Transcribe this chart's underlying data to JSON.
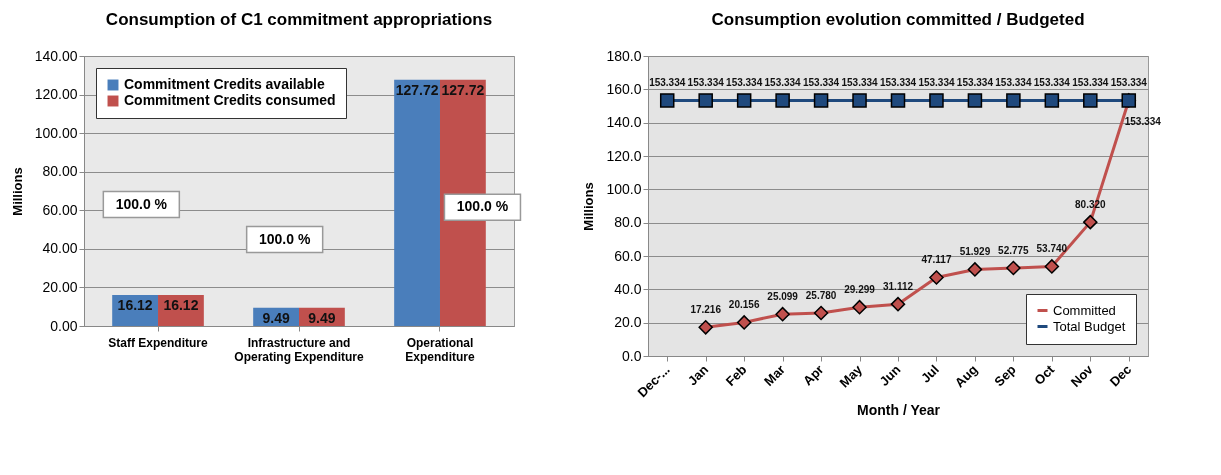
{
  "chart_data": [
    {
      "type": "bar",
      "title": "Consumption of C1 commitment appropriations",
      "ylabel": "Millions",
      "categories": [
        "Staff Expenditure",
        "Infrastructure and Operating Expenditure",
        "Operational Expenditure"
      ],
      "series": [
        {
          "name": "Commitment Credits available",
          "color": "#4a7ebb",
          "values": [
            16.12,
            9.49,
            127.72
          ]
        },
        {
          "name": "Commitment Credits consumed",
          "color": "#c0504d",
          "values": [
            16.12,
            9.49,
            127.72
          ]
        }
      ],
      "ylim": [
        0,
        140
      ],
      "yticks": [
        {
          "value": 0,
          "label": "0.00"
        },
        {
          "value": 20,
          "label": "20.00"
        },
        {
          "value": 40,
          "label": "40.00"
        },
        {
          "value": 60,
          "label": "60.00"
        },
        {
          "value": 80,
          "label": "80.00"
        },
        {
          "value": 100,
          "label": "100.00"
        },
        {
          "value": 120,
          "label": "120.00"
        },
        {
          "value": 140,
          "label": "140.00"
        }
      ],
      "grid": "y",
      "legend": "top left",
      "data_labels": true,
      "annotations": [
        "100.0 %",
        "100.0 %",
        "100.0 %"
      ]
    },
    {
      "type": "line",
      "title": "Consumption evolution committed / Budgeted",
      "ylabel": "Millions",
      "xlabel": "Month / Year",
      "categories": [
        "Dec-...",
        "Jan",
        "Feb",
        "Mar",
        "Apr",
        "May",
        "Jun",
        "Jul",
        "Aug",
        "Sep",
        "Oct",
        "Nov",
        "Dec"
      ],
      "series": [
        {
          "name": "Committed",
          "color": "#c0504d",
          "marker": "diamond",
          "values": [
            null,
            17.216,
            20.156,
            25.099,
            25.78,
            29.299,
            31.112,
            47.117,
            51.929,
            52.775,
            53.74,
            80.32,
            153.334
          ],
          "value_labels": [
            null,
            "17.216",
            "20.156",
            "25.099",
            "25.780",
            "29.299",
            "31.112",
            "47.117",
            "51.929",
            "52.775",
            "53.740",
            "80.320",
            "153.334"
          ]
        },
        {
          "name": "Total Budget",
          "color": "#1f497d",
          "marker": "square",
          "values": [
            153.334,
            153.334,
            153.334,
            153.334,
            153.334,
            153.334,
            153.334,
            153.334,
            153.334,
            153.334,
            153.334,
            153.334,
            153.334
          ],
          "value_labels": [
            "153.334",
            "153.334",
            "153.334",
            "153.334",
            "153.334",
            "153.334",
            "153.334",
            "153.334",
            "153.334",
            "153.334",
            "153.334",
            "153.334",
            "153.334"
          ]
        }
      ],
      "ylim": [
        0,
        180
      ],
      "yticks": [
        {
          "value": 0,
          "label": "0.0"
        },
        {
          "value": 20,
          "label": "20.0"
        },
        {
          "value": 40,
          "label": "40.0"
        },
        {
          "value": 60,
          "label": "60.0"
        },
        {
          "value": 80,
          "label": "80.0"
        },
        {
          "value": 100,
          "label": "100.0"
        },
        {
          "value": 120,
          "label": "120.0"
        },
        {
          "value": 140,
          "label": "140.0"
        },
        {
          "value": 160,
          "label": "160.0"
        },
        {
          "value": 180,
          "label": "180.0"
        }
      ],
      "grid": "y",
      "legend": "bottom right"
    }
  ]
}
